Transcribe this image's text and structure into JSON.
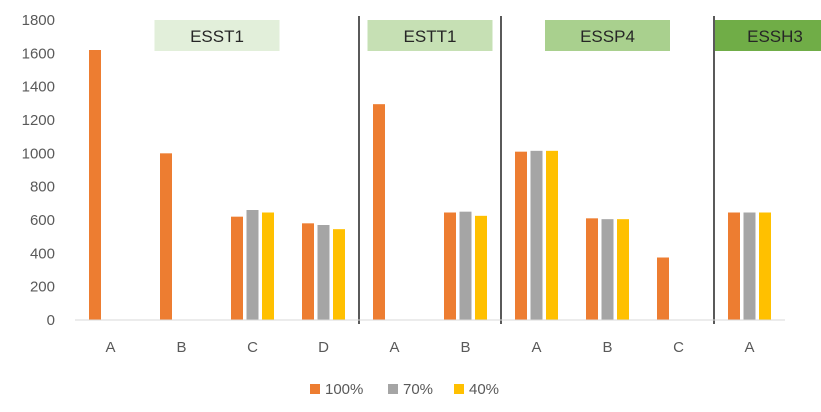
{
  "chart_data": {
    "type": "bar",
    "title": "",
    "xlabel": "",
    "ylabel": "",
    "ylim": [
      0,
      1800
    ],
    "yticks": [
      0,
      200,
      400,
      600,
      800,
      1000,
      1200,
      1400,
      1600,
      1800
    ],
    "grid": false,
    "legend_position": "bottom",
    "categories": [
      "A",
      "B",
      "C",
      "D",
      "A",
      "B",
      "A",
      "B",
      "C",
      "A"
    ],
    "groups": [
      {
        "label": "ESST1",
        "start": 0,
        "end": 3,
        "color": "#e2efda"
      },
      {
        "label": "ESTT1",
        "start": 4,
        "end": 5,
        "color": "#c6e0b4"
      },
      {
        "label": "ESSP4",
        "start": 6,
        "end": 8,
        "color": "#a9d08e"
      },
      {
        "label": "ESSH3",
        "start": 9,
        "end": 9,
        "color": "#70ad47"
      }
    ],
    "series": [
      {
        "name": "100%",
        "color": "#ed7d31",
        "values": [
          1620,
          1000,
          620,
          580,
          1295,
          645,
          1010,
          610,
          375,
          645
        ]
      },
      {
        "name": "70%",
        "color": "#a5a5a5",
        "values": [
          null,
          null,
          660,
          570,
          null,
          650,
          1015,
          605,
          null,
          645
        ]
      },
      {
        "name": "40%",
        "color": "#ffc000",
        "values": [
          null,
          null,
          645,
          545,
          null,
          625,
          1015,
          605,
          null,
          645
        ]
      }
    ]
  }
}
